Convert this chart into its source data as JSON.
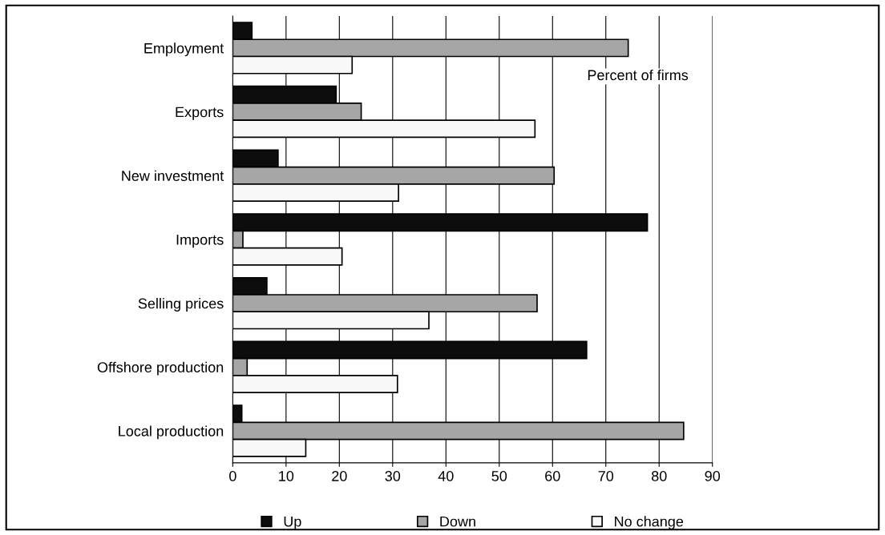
{
  "chart_data": {
    "type": "bar",
    "orientation": "horizontal",
    "categories": [
      "Employment",
      "Exports",
      "New investment",
      "Imports",
      "Selling prices",
      "Offshore production",
      "Local production"
    ],
    "series": [
      {
        "name": "Up",
        "color": "#0d0d0d",
        "values": [
          3.6,
          19.4,
          8.5,
          77.8,
          6.4,
          66.4,
          1.7
        ]
      },
      {
        "name": "Down",
        "color": "#a6a6a6",
        "values": [
          74.2,
          24.1,
          60.3,
          1.9,
          57.1,
          2.7,
          84.6
        ]
      },
      {
        "name": "No change",
        "color": "#f8f8f8",
        "values": [
          22.4,
          56.7,
          31.1,
          20.5,
          36.8,
          30.9,
          13.7
        ]
      }
    ],
    "xlim": [
      0,
      90
    ],
    "xticks": [
      0,
      10,
      20,
      30,
      40,
      50,
      60,
      70,
      80,
      90
    ],
    "grid": "x",
    "legend": "bottom",
    "annotations": [
      "Percent of firms"
    ]
  }
}
